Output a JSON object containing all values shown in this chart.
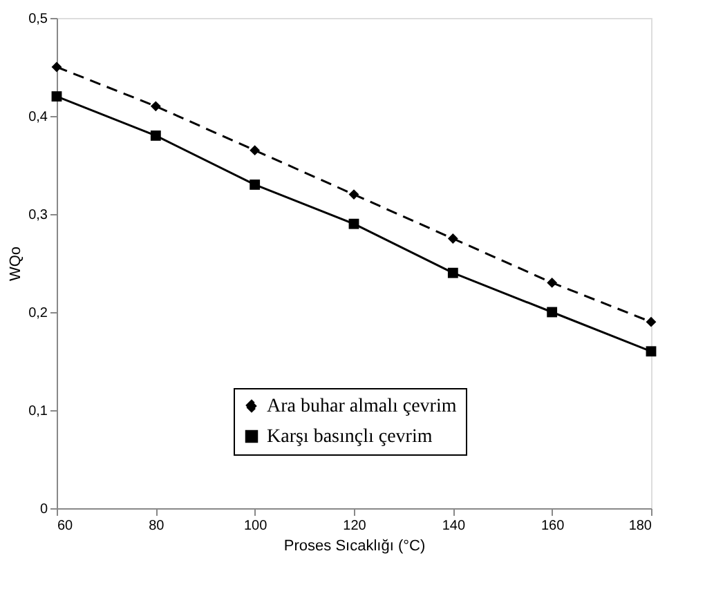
{
  "chart_data": {
    "type": "line",
    "xlabel": "Proses Sıcaklığı (°C)",
    "ylabel": "WQo",
    "x": [
      60,
      80,
      100,
      120,
      140,
      160,
      180
    ],
    "series": [
      {
        "name": "Ara buhar almalı çevrim",
        "color": "#000000",
        "marker": "diamond",
        "line_style": "dashed",
        "values": [
          0.45,
          0.41,
          0.365,
          0.32,
          0.275,
          0.23,
          0.19
        ]
      },
      {
        "name": "Karşı basınçlı çevrim",
        "color": "#000000",
        "marker": "square",
        "line_style": "solid",
        "values": [
          0.42,
          0.38,
          0.33,
          0.29,
          0.24,
          0.2,
          0.16
        ]
      }
    ],
    "xlim": [
      60,
      180
    ],
    "xticks": [
      60,
      80,
      100,
      120,
      140,
      160,
      180
    ],
    "ylim": [
      0,
      0.5
    ],
    "yticks": [
      0,
      {
        "value": 0.1,
        "label": "0,1"
      },
      {
        "value": 0.2,
        "label": "0,2"
      },
      {
        "value": 0.3,
        "label": "0,3"
      },
      {
        "value": 0.4,
        "label": "0,4"
      },
      {
        "value": 0.5,
        "label": "0,5"
      }
    ],
    "grid": false,
    "legend": "bottom"
  }
}
